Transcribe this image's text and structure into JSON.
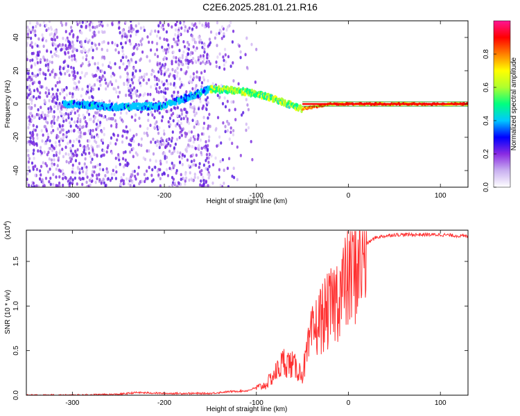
{
  "title": "C2E6.2025.281.01.21.R16",
  "chart_data": [
    {
      "type": "heatmap",
      "xlabel": "Height of straight line (km)",
      "ylabel": "Frequency (Hz)",
      "xlim": [
        -350,
        130
      ],
      "ylim": [
        -50,
        50
      ],
      "x_ticks": [
        -300,
        -200,
        -100,
        0,
        100
      ],
      "y_ticks": [
        -40,
        -20,
        0,
        20,
        40
      ],
      "colorbar": {
        "label": "Normalized spectral amplitude",
        "range": [
          0.0,
          1.0
        ],
        "ticks": [
          "0.0",
          "0.2",
          "0.4",
          "0.6",
          "0.8"
        ],
        "colormap": [
          "#ffffff",
          "#c9b0f0",
          "#8a2be2",
          "#0000ff",
          "#00c8ff",
          "#00ff80",
          "#adff2f",
          "#ffff00",
          "#ff8000",
          "#ff0000",
          "#ff1493"
        ]
      },
      "ridge": {
        "description_points_x": [
          -350,
          -300,
          -250,
          -200,
          -150,
          -120,
          -100,
          -80,
          -60,
          -50,
          -40,
          -20,
          0,
          50,
          100,
          130
        ],
        "frequency_y": [
          0,
          0,
          -2,
          -1,
          9,
          8,
          6,
          3,
          -1,
          -3,
          -2,
          0,
          0,
          0,
          0,
          0
        ]
      }
    },
    {
      "type": "line",
      "xlabel": "Height of straight line (km)",
      "ylabel": "SNR (10 * v/v)",
      "y_scale_label": "(x10",
      "y_scale_exponent": "4",
      "xlim": [
        -350,
        130
      ],
      "ylim": [
        0,
        1.85
      ],
      "x_ticks": [
        -300,
        -200,
        -100,
        0,
        100
      ],
      "y_ticks": [
        "0.0",
        "0.5",
        "1.0",
        "1.5"
      ],
      "line_color": "#ff3030",
      "series": [
        {
          "x": [
            -350,
            -300,
            -250,
            -230,
            -200,
            -150,
            -130,
            -110,
            -90,
            -80,
            -70,
            -60,
            -50,
            -40,
            -30,
            -20,
            -10,
            0,
            10,
            20,
            30,
            50,
            70,
            100,
            130
          ],
          "y": [
            0.0,
            0.0,
            0.01,
            0.03,
            0.02,
            0.02,
            0.04,
            0.05,
            0.12,
            0.25,
            0.4,
            0.35,
            0.25,
            0.7,
            0.9,
            1.0,
            1.2,
            1.35,
            1.55,
            1.7,
            1.77,
            1.8,
            1.8,
            1.8,
            1.78
          ]
        }
      ]
    }
  ]
}
